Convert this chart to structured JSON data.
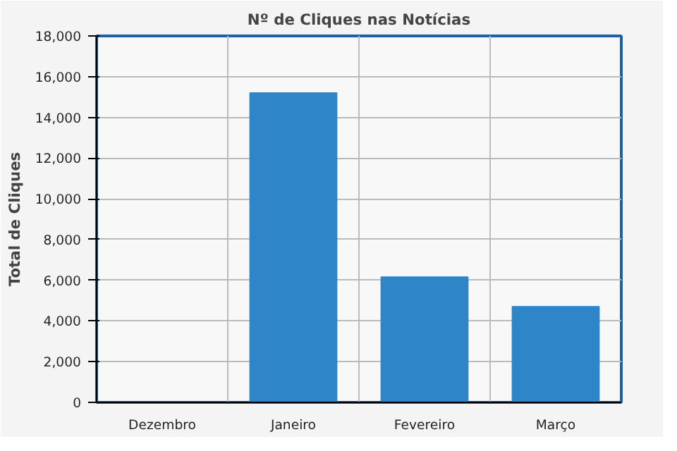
{
  "chart_data": {
    "type": "bar",
    "title": "Nº de Cliques nas Notícias",
    "ylabel": "Total de Cliques",
    "categories": [
      "Dezembro",
      "Janeiro",
      "Fevereiro",
      "Março"
    ],
    "values": [
      0,
      15200,
      6150,
      4700
    ],
    "color": "#2e86c8",
    "ylim": [
      0,
      18000
    ],
    "yticks": [
      {
        "value": 0,
        "label": "0"
      },
      {
        "value": 2000,
        "label": "2,000"
      },
      {
        "value": 4000,
        "label": "4,000"
      },
      {
        "value": 6000,
        "label": "6,000"
      },
      {
        "value": 8000,
        "label": "8,000"
      },
      {
        "value": 10000,
        "label": "10,000"
      },
      {
        "value": 12000,
        "label": "12,000"
      },
      {
        "value": 14000,
        "label": "14,000"
      },
      {
        "value": 16000,
        "label": "16,000"
      },
      {
        "value": 18000,
        "label": "18,000"
      }
    ],
    "grid": true
  }
}
